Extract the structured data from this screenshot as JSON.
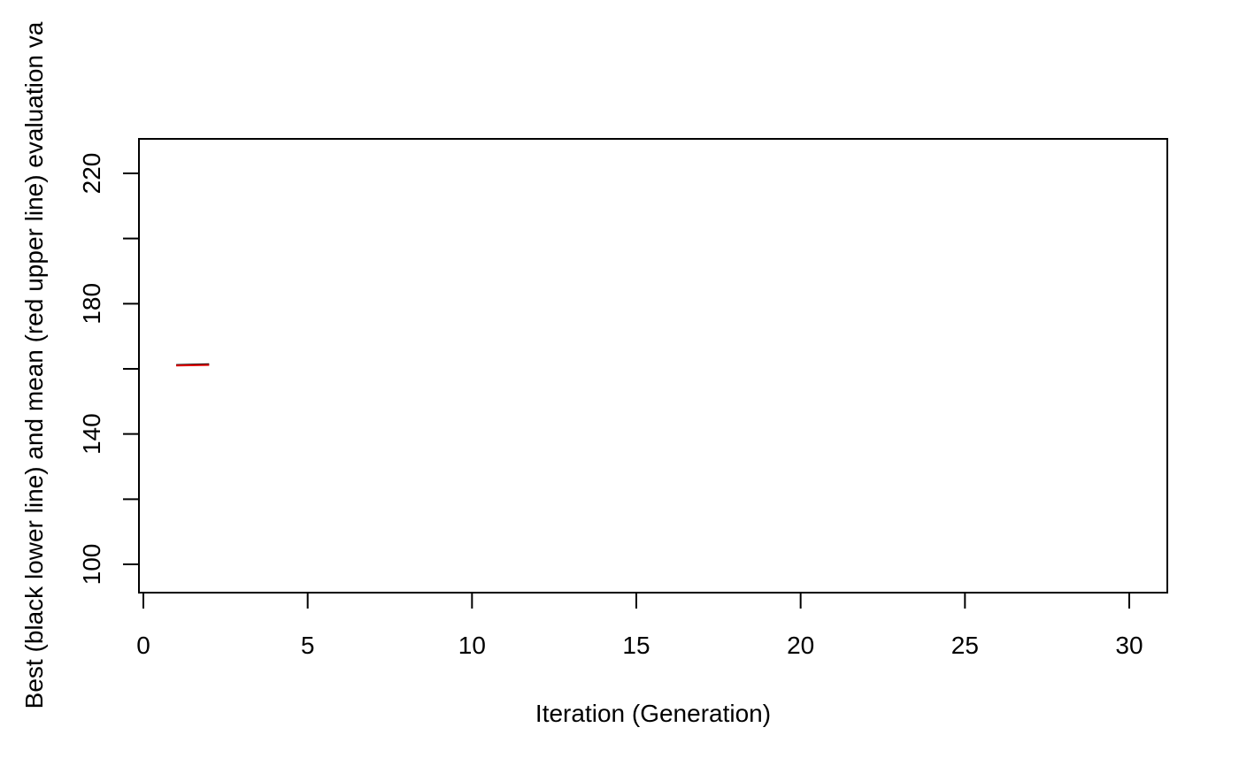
{
  "chart_data": {
    "type": "line",
    "title": "",
    "xlabel": "Iteration (Generation)",
    "ylabel": "Best (black lower line) and mean (red upper line) evaluation va",
    "xlim": [
      0,
      30
    ],
    "ylim": [
      92,
      230
    ],
    "x_ticks": [
      0,
      5,
      10,
      15,
      20,
      25,
      30
    ],
    "y_ticks": [
      100,
      140,
      180,
      220
    ],
    "y_minor_ticks": [
      120,
      160,
      200
    ],
    "grid": false,
    "legend": "none",
    "series": [
      {
        "color": "#000000",
        "x": [
          1,
          2
        ],
        "y": [
          161.2,
          161.4
        ]
      },
      {
        "color": "#DF0000",
        "x": [
          1,
          2
        ],
        "y": [
          161.0,
          161.2
        ]
      }
    ]
  }
}
